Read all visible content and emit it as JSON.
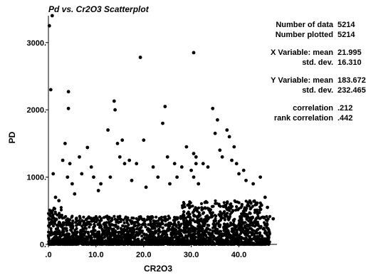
{
  "chart_data": {
    "type": "scatter",
    "title": "Pd vs. Cr2O3 Scatterplot",
    "xlabel": "CR2O3",
    "ylabel": "PD",
    "xlim": [
      0,
      48
    ],
    "ylim": [
      0,
      3400
    ],
    "x_ticks": [
      0,
      10,
      20,
      30,
      40
    ],
    "x_tick_labels": [
      ".0",
      "10.0",
      "20.0",
      "30.0",
      "40.0"
    ],
    "y_ticks": [
      0,
      1000,
      2000,
      3000
    ],
    "y_tick_labels": [
      "0.",
      "1000.",
      "2000.",
      "3000."
    ],
    "grid": false,
    "n_data": 5214,
    "points": [
      [
        0.2,
        3250
      ],
      [
        0.8,
        3400
      ],
      [
        0.5,
        2300
      ],
      [
        1.0,
        1050
      ],
      [
        1.5,
        700
      ],
      [
        2.2,
        650
      ],
      [
        3.5,
        1500
      ],
      [
        3.0,
        1250
      ],
      [
        4.2,
        2270
      ],
      [
        4.2,
        2020
      ],
      [
        4.5,
        1200
      ],
      [
        4.0,
        1000
      ],
      [
        5.0,
        900
      ],
      [
        5.5,
        750
      ],
      [
        6.5,
        1300
      ],
      [
        7.0,
        1050
      ],
      [
        8.2,
        1440
      ],
      [
        9.0,
        1150
      ],
      [
        9.5,
        1000
      ],
      [
        10.5,
        800
      ],
      [
        11.0,
        900
      ],
      [
        12.5,
        1700
      ],
      [
        13.0,
        1000
      ],
      [
        13.8,
        2130
      ],
      [
        14.0,
        2000
      ],
      [
        14.5,
        1500
      ],
      [
        15.0,
        1300
      ],
      [
        15.5,
        1550
      ],
      [
        16.0,
        1200
      ],
      [
        17.0,
        1250
      ],
      [
        17.5,
        950
      ],
      [
        18.5,
        1200
      ],
      [
        19.3,
        2780
      ],
      [
        20.0,
        1550
      ],
      [
        20.5,
        850
      ],
      [
        22.0,
        1150
      ],
      [
        23.0,
        1000
      ],
      [
        24.0,
        1800
      ],
      [
        24.5,
        2050
      ],
      [
        25.0,
        1300
      ],
      [
        25.5,
        900
      ],
      [
        26.5,
        1200
      ],
      [
        27.0,
        1000
      ],
      [
        28.0,
        1150
      ],
      [
        29.0,
        1450
      ],
      [
        30.5,
        2850
      ],
      [
        30.5,
        1350
      ],
      [
        31.0,
        1300
      ],
      [
        31.0,
        1200
      ],
      [
        30.0,
        1100
      ],
      [
        30.5,
        1000
      ],
      [
        31.5,
        900
      ],
      [
        32.5,
        1200
      ],
      [
        33.5,
        1150
      ],
      [
        34.5,
        2020
      ],
      [
        35.0,
        1650
      ],
      [
        35.5,
        1850
      ],
      [
        36.0,
        1400
      ],
      [
        36.5,
        1300
      ],
      [
        37.5,
        1700
      ],
      [
        38.0,
        1600
      ],
      [
        38.5,
        1250
      ],
      [
        39.0,
        1450
      ],
      [
        39.5,
        1200
      ],
      [
        40.0,
        1050
      ],
      [
        41.0,
        1100
      ],
      [
        41.5,
        950
      ],
      [
        43.0,
        900
      ],
      [
        44.5,
        1000
      ],
      [
        46.0,
        550
      ],
      [
        47.2,
        380
      ],
      [
        45.5,
        700
      ]
    ]
  },
  "stats": {
    "n_data_label": "Number of data",
    "n_data": "5214",
    "n_plotted_label": "Number plotted",
    "n_plotted": "5214",
    "x_mean_label": "X Variable: mean",
    "x_mean": "21.995",
    "x_sd_label": "std. dev.",
    "x_sd": "16.310",
    "y_mean_label": "Y Variable: mean",
    "y_mean": "183.672",
    "y_sd_label": "std. dev.",
    "y_sd": "232.465",
    "corr_label": "correlation",
    "corr": ".212",
    "rank_corr_label": "rank correlation",
    "rank_corr": ".442"
  }
}
